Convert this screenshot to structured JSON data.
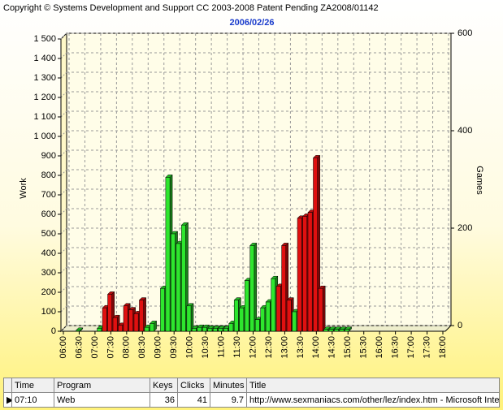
{
  "header": {
    "copyright": "Copyright © Systems Development and Support CC 2003-2008 Patent Pending ZA2008/01142"
  },
  "chart_data": {
    "type": "bar",
    "title": "2006/02/26",
    "y_label": "Work",
    "y2_label": "Games",
    "categories": [
      "06:00",
      null,
      null,
      "06:30",
      null,
      null,
      "07:00",
      null,
      null,
      "07:30",
      null,
      null,
      "08:00",
      null,
      null,
      "08:30",
      null,
      null,
      "09:00",
      null,
      null,
      "09:30",
      null,
      null,
      "10:00",
      null,
      null,
      "10:30",
      null,
      null,
      "11:00",
      null,
      null,
      "11:30",
      null,
      null,
      "12:00",
      null,
      null,
      "12:30",
      null,
      null,
      "13:00",
      null,
      null,
      "13:30",
      null,
      null,
      "14:00",
      null,
      null,
      "14:30",
      null,
      null,
      "15:00",
      null,
      null,
      "15:30",
      null,
      null,
      "16:00",
      null,
      null,
      "16:30",
      null,
      null,
      "17:00",
      null,
      null,
      "17:30",
      null,
      null,
      "18:00"
    ],
    "values": [
      null,
      null,
      5,
      null,
      null,
      null,
      15,
      120,
      190,
      70,
      30,
      130,
      110,
      90,
      160,
      20,
      40,
      null,
      220,
      790,
      500,
      450,
      545,
      130,
      15,
      20,
      20,
      15,
      15,
      15,
      15,
      40,
      160,
      120,
      260,
      440,
      60,
      120,
      150,
      270,
      230,
      440,
      160,
      100,
      580,
      590,
      610,
      890,
      220,
      10,
      10,
      10,
      10,
      10,
      null,
      null,
      null,
      null,
      null,
      null,
      null,
      null,
      null,
      null,
      null,
      null,
      null,
      null,
      null,
      null,
      null,
      null,
      null
    ],
    "colors": [
      null,
      null,
      "#2ee62e",
      null,
      null,
      null,
      "#2ee62e",
      "#e01010",
      "#e01010",
      "#e01010",
      "#e01010",
      "#e01010",
      "#e01010",
      "#e01010",
      "#e01010",
      "#2ee62e",
      "#2ee62e",
      null,
      "#2ee62e",
      "#2ee62e",
      "#2ee62e",
      "#2ee62e",
      "#2ee62e",
      "#2ee62e",
      "#2ee62e",
      "#2ee62e",
      "#2ee62e",
      "#2ee62e",
      "#2ee62e",
      "#2ee62e",
      "#2ee62e",
      "#2ee62e",
      "#2ee62e",
      "#2ee62e",
      "#2ee62e",
      "#2ee62e",
      "#2ee62e",
      "#2ee62e",
      "#2ee62e",
      "#2ee62e",
      "#e01010",
      "#e01010",
      "#e01010",
      "#2ee62e",
      "#e01010",
      "#e01010",
      "#e01010",
      "#e01010",
      "#e01010",
      "#2ee62e",
      "#2ee62e",
      "#2ee62e",
      "#2ee62e",
      "#2ee62e",
      null,
      null,
      null,
      null,
      null,
      null,
      null,
      null,
      null,
      null,
      null,
      null,
      null,
      null,
      null,
      null,
      null,
      null,
      null
    ],
    "ylim": [
      0,
      1500
    ],
    "yticks": [
      0,
      100,
      200,
      300,
      400,
      500,
      600,
      700,
      800,
      900,
      {
        "value": 1000,
        "label": "1 000"
      },
      {
        "value": 1100,
        "label": "1 100"
      },
      {
        "value": 1200,
        "label": "1 200"
      },
      {
        "value": 1300,
        "label": "1 300"
      },
      {
        "value": 1400,
        "label": "1 400"
      },
      {
        "value": 1500,
        "label": "1 500"
      }
    ],
    "y2lim": [
      0,
      600
    ],
    "y2ticks": [
      0,
      200,
      400,
      600
    ],
    "grid": true
  },
  "table": {
    "columns": [
      "Time",
      "Program",
      "Keys",
      "Clicks",
      "Minutes",
      "Title"
    ],
    "rows": [
      [
        "07:10",
        "Web",
        36,
        41,
        9.7,
        "http://www.sexmaniacs.com/other/lez/index.htm - Microsoft Inte"
      ]
    ]
  }
}
